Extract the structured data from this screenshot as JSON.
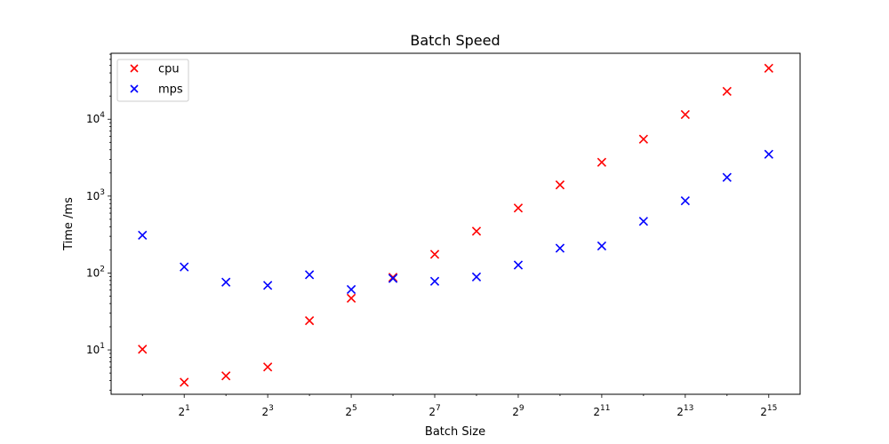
{
  "chart_data": {
    "type": "scatter",
    "title": "Batch Speed",
    "xlabel": "Batch Size",
    "ylabel": "Time /ms",
    "x_scale": "log2",
    "y_scale": "log10",
    "x": [
      1,
      2,
      4,
      8,
      16,
      32,
      64,
      128,
      256,
      512,
      1024,
      2048,
      4096,
      8192,
      16384,
      32768
    ],
    "series": [
      {
        "name": "cpu",
        "color": "#ff0000",
        "marker": "x",
        "values": [
          10.2,
          3.8,
          4.6,
          6.0,
          24,
          47,
          88,
          175,
          350,
          700,
          1400,
          2750,
          5500,
          11500,
          23000,
          46000
        ]
      },
      {
        "name": "mps",
        "color": "#0000ff",
        "marker": "x",
        "values": [
          310,
          120,
          76,
          69,
          95,
          61,
          85,
          78,
          89,
          127,
          210,
          225,
          470,
          870,
          1750,
          3500
        ]
      }
    ],
    "x_ticks": [
      {
        "base": "2",
        "exp": "1"
      },
      {
        "base": "2",
        "exp": "3"
      },
      {
        "base": "2",
        "exp": "5"
      },
      {
        "base": "2",
        "exp": "7"
      },
      {
        "base": "2",
        "exp": "9"
      },
      {
        "base": "2",
        "exp": "11"
      },
      {
        "base": "2",
        "exp": "13"
      },
      {
        "base": "2",
        "exp": "15"
      }
    ],
    "y_ticks": [
      {
        "base": "10",
        "exp": "1"
      },
      {
        "base": "10",
        "exp": "2"
      },
      {
        "base": "10",
        "exp": "3"
      },
      {
        "base": "10",
        "exp": "4"
      }
    ],
    "grid": false,
    "legend_position": "top-left"
  }
}
